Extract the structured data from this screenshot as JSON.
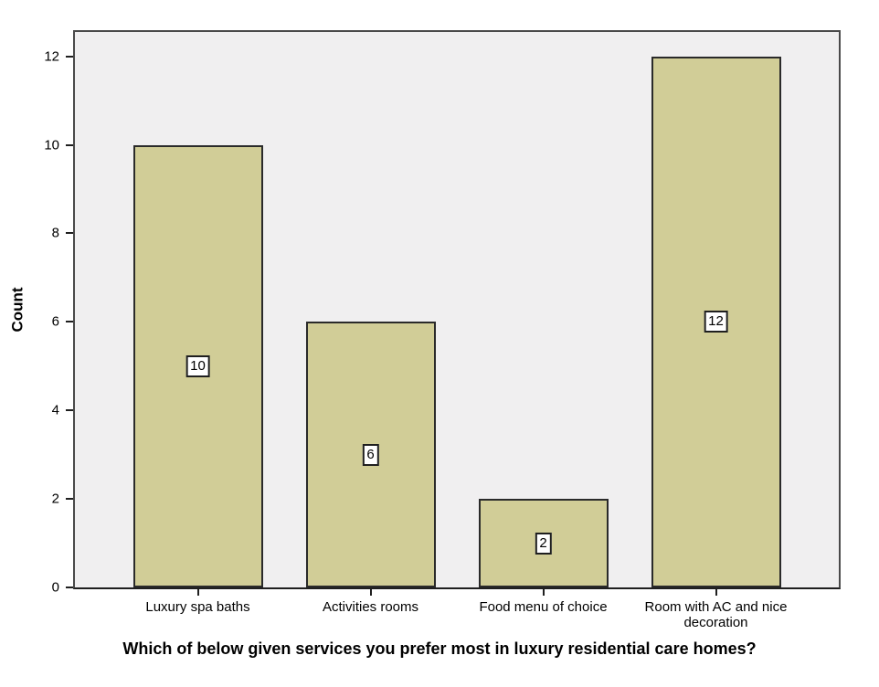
{
  "chart_data": {
    "type": "bar",
    "title": "Which of below given services you prefer most in luxury residential care homes?",
    "ylabel": "Count",
    "xlabel": "",
    "categories": [
      "Luxury spa baths",
      "Activities rooms",
      "Food menu of choice",
      "Room with AC and nice decoration"
    ],
    "values": [
      10,
      6,
      2,
      12
    ],
    "bar_value_labels": [
      "10",
      "6",
      "2",
      "12"
    ],
    "y_ticks": [
      0,
      2,
      4,
      6,
      8,
      10,
      12
    ],
    "ylim": [
      0,
      12.55
    ],
    "grid": false,
    "legend": "none"
  },
  "colors": {
    "figure_bg": "#ffffff",
    "plot_bg": "#f0eff0",
    "plot_border": "#4a4a4a",
    "axis_line": "#1f1f1f",
    "bar_fill": "#d1cd97",
    "bar_border": "#2a2a2a",
    "value_box_bg": "#ffffff",
    "value_box_border": "#1f1f1f",
    "text": "#000000"
  }
}
